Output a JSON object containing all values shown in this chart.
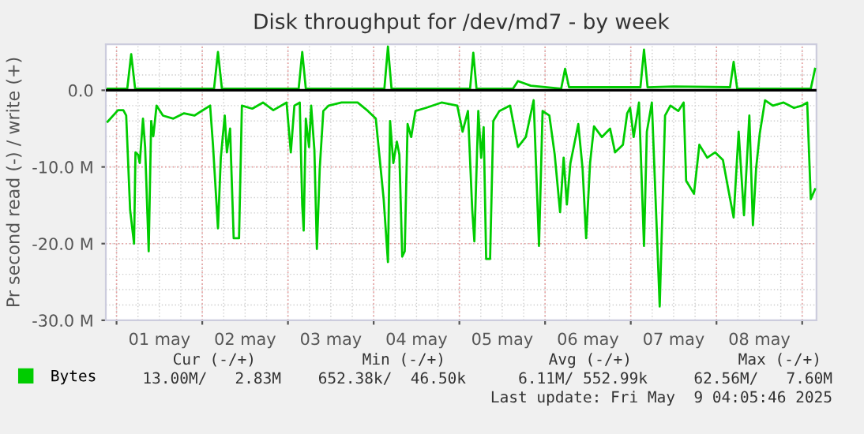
{
  "chart_data": {
    "type": "line",
    "title": "Disk throughput for /dev/md7 - by week",
    "ylabel": "Pr second read (-) / write (+)",
    "xlim": [
      "2025-04-30T21:00",
      "2025-05-09T04:00"
    ],
    "xticks": [
      {
        "value": "2025-05-01T00:00",
        "label": null
      },
      {
        "value": "2025-05-01T12:00",
        "label": "01 may"
      },
      {
        "value": "2025-05-02T00:00",
        "label": null
      },
      {
        "value": "2025-05-02T12:00",
        "label": "02 may"
      },
      {
        "value": "2025-05-03T00:00",
        "label": null
      },
      {
        "value": "2025-05-03T12:00",
        "label": "03 may"
      },
      {
        "value": "2025-05-04T00:00",
        "label": null
      },
      {
        "value": "2025-05-04T12:00",
        "label": "04 may"
      },
      {
        "value": "2025-05-05T00:00",
        "label": null
      },
      {
        "value": "2025-05-05T12:00",
        "label": "05 may"
      },
      {
        "value": "2025-05-06T00:00",
        "label": null
      },
      {
        "value": "2025-05-06T12:00",
        "label": "06 may"
      },
      {
        "value": "2025-05-07T00:00",
        "label": null
      },
      {
        "value": "2025-05-07T12:00",
        "label": "07 may"
      },
      {
        "value": "2025-05-08T00:00",
        "label": null
      },
      {
        "value": "2025-05-08T12:00",
        "label": "08 may"
      },
      {
        "value": "2025-05-09T00:00",
        "label": null
      }
    ],
    "ylim": [
      -30,
      6
    ],
    "yticks": [
      {
        "value": -30,
        "label": "-30.0 M"
      },
      {
        "value": -20,
        "label": "-20.0 M"
      },
      {
        "value": -10,
        "label": "-10.0 M"
      },
      {
        "value": 0,
        "label": "0.0"
      }
    ],
    "grid": true,
    "legend": "bottom left",
    "marker": "none",
    "line_style": "solid",
    "ref_lines": [
      {
        "axis": "y",
        "value": 0,
        "label": null,
        "color": "#000000"
      }
    ],
    "annotations": [
      "Cur (-/+)",
      "Min (-/+)",
      "Avg (-/+)",
      "Max (-/+)",
      "13.00M/   2.83M",
      "652.38k/  46.50k",
      "6.11M/ 552.99k",
      "62.56M/   7.60M",
      "Last update: Fri May  9 04:05:46 2025"
    ],
    "series": [
      {
        "name": "Bytes",
        "color": "#00cc00",
        "x": [
          "2025-04-30T21:30",
          "2025-05-01T00:24",
          "2025-05-01T01:54",
          "2025-05-01T02:42",
          "2025-05-01T03:48",
          "2025-05-01T04:54",
          "2025-05-01T05:18",
          "2025-05-01T06:00",
          "2025-05-01T06:30",
          "2025-05-01T07:24",
          "2025-05-01T08:00",
          "2025-05-01T09:00",
          "2025-05-01T09:42",
          "2025-05-01T10:18",
          "2025-05-01T11:12",
          "2025-05-01T13:00",
          "2025-05-01T15:54",
          "2025-05-01T18:54",
          "2025-05-01T21:48",
          "2025-05-02T02:12",
          "2025-05-02T03:00",
          "2025-05-02T04:24",
          "2025-05-02T05:12",
          "2025-05-02T06:18",
          "2025-05-02T06:54",
          "2025-05-02T07:48",
          "2025-05-02T08:06",
          "2025-05-02T08:48",
          "2025-05-02T10:18",
          "2025-05-02T11:06",
          "2025-05-02T14:00",
          "2025-05-02T17:00",
          "2025-05-02T19:54",
          "2025-05-02T23:36",
          "2025-05-03T00:48",
          "2025-05-03T01:48",
          "2025-05-03T03:18",
          "2025-05-03T04:00",
          "2025-05-03T04:24",
          "2025-05-03T05:00",
          "2025-05-03T05:54",
          "2025-05-03T06:30",
          "2025-05-03T07:24",
          "2025-05-03T08:06",
          "2025-05-03T08:54",
          "2025-05-03T09:54",
          "2025-05-03T11:24",
          "2025-05-03T15:00",
          "2025-05-03T19:30",
          "2025-05-03T22:24",
          "2025-05-04T00:36",
          "2025-05-04T02:48",
          "2025-05-04T04:00",
          "2025-05-04T04:36",
          "2025-05-04T05:30",
          "2025-05-04T06:30",
          "2025-05-04T07:12",
          "2025-05-04T08:00",
          "2025-05-04T08:42",
          "2025-05-04T09:30",
          "2025-05-04T10:30",
          "2025-05-04T11:42",
          "2025-05-04T14:36",
          "2025-05-04T19:00",
          "2025-05-04T23:24",
          "2025-05-05T00:54",
          "2025-05-05T02:24",
          "2025-05-05T03:36",
          "2025-05-05T04:12",
          "2025-05-05T05:18",
          "2025-05-05T06:06",
          "2025-05-05T06:48",
          "2025-05-05T07:30",
          "2025-05-05T08:36",
          "2025-05-05T09:30",
          "2025-05-05T11:12",
          "2025-05-05T14:12",
          "2025-05-05T16:24",
          "2025-05-05T18:36",
          "2025-05-05T20:48",
          "2025-05-05T22:18",
          "2025-05-05T23:18",
          "2025-05-06T01:12",
          "2025-05-06T02:42",
          "2025-05-06T04:12",
          "2025-05-06T05:12",
          "2025-05-06T06:06",
          "2025-05-06T07:06",
          "2025-05-06T09:18",
          "2025-05-06T10:30",
          "2025-05-06T11:30",
          "2025-05-06T12:36",
          "2025-05-06T13:42",
          "2025-05-06T15:54",
          "2025-05-06T18:12",
          "2025-05-06T19:36",
          "2025-05-06T21:48",
          "2025-05-06T23:00",
          "2025-05-06T23:48",
          "2025-05-07T00:48",
          "2025-05-07T02:18",
          "2025-05-07T03:42",
          "2025-05-07T04:30",
          "2025-05-07T05:54",
          "2025-05-07T07:24",
          "2025-05-07T08:06",
          "2025-05-07T09:36",
          "2025-05-07T11:06",
          "2025-05-07T13:18",
          "2025-05-07T14:48",
          "2025-05-07T15:30",
          "2025-05-07T17:42",
          "2025-05-07T19:12",
          "2025-05-07T21:24",
          "2025-05-07T23:36",
          "2025-05-08T01:48",
          "2025-05-08T03:18",
          "2025-05-08T04:48",
          "2025-05-08T06:12",
          "2025-05-08T07:42",
          "2025-05-08T09:12",
          "2025-05-08T10:12",
          "2025-05-08T11:06",
          "2025-05-08T12:06",
          "2025-05-08T13:36",
          "2025-05-08T15:48",
          "2025-05-08T18:48",
          "2025-05-08T21:42",
          "2025-05-08T23:54",
          "2025-05-09T01:24",
          "2025-05-09T02:24",
          "2025-05-09T03:36"
        ],
        "values": [
          -4.1,
          -2.6,
          -2.6,
          -3.3,
          -15.6,
          -20.0,
          -8.1,
          -8.4,
          -9.5,
          -3.7,
          -7.4,
          -21.0,
          -4.0,
          -6.0,
          -2.0,
          -3.3,
          -3.7,
          -3.0,
          -3.3,
          -2.0,
          -7.1,
          -18.0,
          -8.8,
          -3.3,
          -8.1,
          -5.0,
          -9.5,
          -19.3,
          -19.3,
          -2.0,
          -2.4,
          -1.6,
          -2.6,
          -1.6,
          -8.1,
          -2.0,
          -1.6,
          -15.0,
          -18.3,
          -3.7,
          -7.4,
          -2.0,
          -7.8,
          -20.7,
          -10.2,
          -2.7,
          -2.0,
          -1.6,
          -1.6,
          -2.7,
          -3.7,
          -14.2,
          -22.4,
          -4.0,
          -9.5,
          -6.7,
          -8.4,
          -21.7,
          -21.0,
          -4.4,
          -6.1,
          -2.7,
          -2.3,
          -1.6,
          -2.0,
          -5.4,
          -2.7,
          -15.6,
          -19.7,
          -2.7,
          -8.8,
          -4.8,
          -22.0,
          -22.0,
          -4.0,
          -2.7,
          -2.0,
          -7.4,
          -6.1,
          -1.3,
          -20.3,
          -2.7,
          -3.3,
          -8.4,
          -15.9,
          -8.8,
          -14.9,
          -9.5,
          -4.4,
          -10.2,
          -19.3,
          -9.5,
          -4.7,
          -6.1,
          -5.0,
          -8.1,
          -7.1,
          -3.0,
          -2.3,
          -6.1,
          -1.6,
          -20.3,
          -5.4,
          -1.6,
          -19.7,
          -28.2,
          -3.3,
          -2.0,
          -2.7,
          -1.6,
          -11.8,
          -13.5,
          -7.1,
          -8.8,
          -8.1,
          -9.1,
          -12.9,
          -16.6,
          -5.4,
          -16.3,
          -3.3,
          -17.6,
          -10.2,
          -5.7,
          -1.3,
          -2.0,
          -1.6,
          -2.3,
          -2.0,
          -1.6,
          -14.2,
          -12.9
        ]
      },
      {
        "color": "#00cc00",
        "x": [
          "2025-04-30T21:30",
          "2025-05-01T03:00",
          "2025-05-01T04:06",
          "2025-05-01T05:12",
          "2025-05-02T03:18",
          "2025-05-02T04:24",
          "2025-05-02T05:30",
          "2025-05-03T03:00",
          "2025-05-03T04:00",
          "2025-05-03T05:00",
          "2025-05-04T03:00",
          "2025-05-04T04:00",
          "2025-05-04T05:00",
          "2025-05-05T03:00",
          "2025-05-05T03:54",
          "2025-05-05T04:48",
          "2025-05-05T15:00",
          "2025-05-05T16:24",
          "2025-05-05T20:00",
          "2025-05-06T04:30",
          "2025-05-06T05:36",
          "2025-05-06T06:42",
          "2025-05-06T08:00",
          "2025-05-07T02:42",
          "2025-05-07T03:42",
          "2025-05-07T04:42",
          "2025-05-07T12:00",
          "2025-05-08T03:48",
          "2025-05-08T04:48",
          "2025-05-08T05:48",
          "2025-05-09T02:24",
          "2025-05-09T03:36"
        ],
        "values": [
          0.2,
          0.2,
          4.7,
          0.2,
          0.2,
          5.0,
          0.2,
          0.2,
          5.0,
          0.2,
          0.2,
          5.7,
          0.2,
          0.2,
          4.9,
          0.2,
          0.2,
          1.2,
          0.6,
          0.2,
          2.8,
          0.4,
          0.4,
          0.4,
          5.3,
          0.4,
          0.5,
          0.4,
          3.7,
          0.2,
          0.2,
          2.8
        ]
      }
    ]
  }
}
